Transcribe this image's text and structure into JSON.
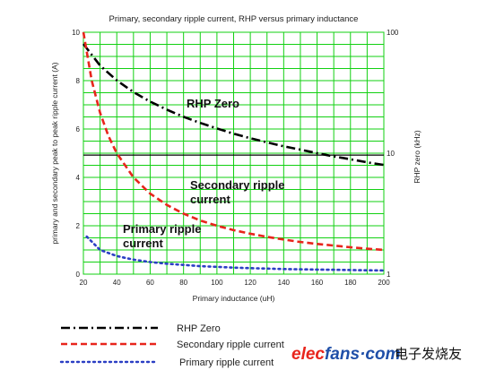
{
  "chart_data": {
    "type": "line",
    "title": "Primary, secondary ripple current, RHP versus primary inductance",
    "xlabel": "Primary inductance (uH)",
    "ylabel": "primary and secondary peak to peak ripple current (A)",
    "y2label": "RHP zero (kHz)",
    "xlim": [
      20,
      200
    ],
    "ylim": [
      0,
      10
    ],
    "y2lim": [
      1,
      100
    ],
    "y2scale": "log",
    "xticks": [
      "20",
      "40",
      "60",
      "80",
      "100",
      "120",
      "140",
      "160",
      "180",
      "200"
    ],
    "yticks": [
      "0",
      "2",
      "4",
      "6",
      "8",
      "10"
    ],
    "y2ticks": [
      "1",
      "10",
      "100"
    ],
    "grid": true,
    "series": [
      {
        "name": "RHP Zero",
        "axis": "right",
        "color": "#000000",
        "dash": "10 4 2 4",
        "x": [
          20,
          30,
          40,
          50,
          60,
          70,
          80,
          90,
          100,
          110,
          120,
          130,
          140,
          150,
          160,
          170,
          180,
          190,
          200
        ],
        "y": [
          80,
          53,
          40,
          32,
          26.7,
          22.9,
          20,
          17.8,
          16,
          14.5,
          13.3,
          12.3,
          11.4,
          10.7,
          10,
          9.4,
          8.9,
          8.4,
          8
        ]
      },
      {
        "name": "Secondary ripple current",
        "axis": "left",
        "color": "#e8251c",
        "dash": "7 4",
        "x": [
          20,
          25,
          30,
          35,
          40,
          50,
          60,
          70,
          80,
          90,
          100,
          110,
          120,
          130,
          140,
          150,
          160,
          170,
          180,
          190,
          200
        ],
        "y": [
          10,
          8,
          6.67,
          5.71,
          5,
          4,
          3.33,
          2.86,
          2.5,
          2.22,
          2,
          1.82,
          1.67,
          1.54,
          1.43,
          1.33,
          1.25,
          1.18,
          1.11,
          1.05,
          1
        ]
      },
      {
        "name": "Primary ripple current",
        "axis": "left",
        "color": "#2b3fc4",
        "dash": "2 4",
        "x": [
          22,
          30,
          40,
          50,
          60,
          70,
          80,
          90,
          100,
          110,
          120,
          130,
          140,
          150,
          160,
          170,
          180,
          190,
          200
        ],
        "y": [
          1.55,
          1.0,
          0.75,
          0.6,
          0.5,
          0.43,
          0.38,
          0.33,
          0.3,
          0.27,
          0.25,
          0.23,
          0.21,
          0.2,
          0.19,
          0.18,
          0.17,
          0.16,
          0.15
        ]
      }
    ],
    "annotations": [
      {
        "text": "RHP Zero"
      },
      {
        "text": "Secondary ripple current"
      },
      {
        "text": "Primary ripple current"
      }
    ],
    "legend": {
      "position": "bottom-left",
      "entries": [
        "RHP Zero",
        "Secondary ripple current",
        "Primary ripple current"
      ]
    },
    "colors": {
      "grid": "#12d012",
      "background": "#ffffff",
      "reference_line": "#000000"
    },
    "reference_line_y": 4.92
  },
  "watermark": {
    "text_en": "elecfans",
    "text_com": "·com",
    "text_cn": "电子发烧友",
    "colors": {
      "elec": "#e8251c",
      "fans": "#1f4fa8",
      "com": "#1f4fa8"
    }
  }
}
